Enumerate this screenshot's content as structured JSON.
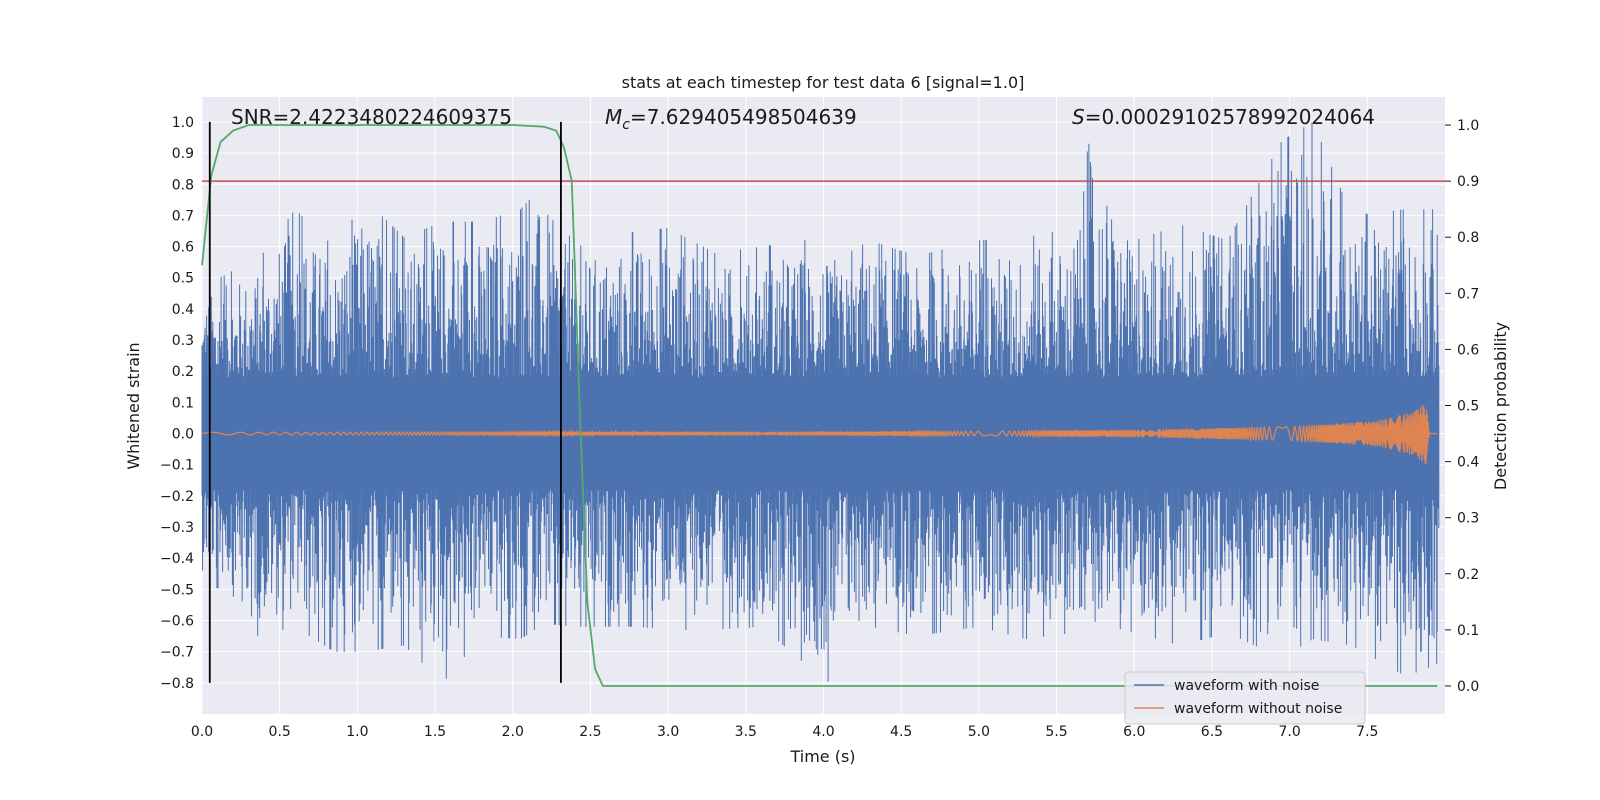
{
  "chart_data": {
    "type": "line",
    "title": "stats at each timestep for test data 6 [signal=1.0]",
    "xlabel": "Time (s)",
    "ylabel": "Whitened strain",
    "ylabel_right": "Detection probability",
    "xlim": [
      0,
      8
    ],
    "ylim": [
      -0.9,
      1.08
    ],
    "ylim_right": [
      -0.05,
      1.05
    ],
    "x_ticks": [
      0.0,
      0.5,
      1.0,
      1.5,
      2.0,
      2.5,
      3.0,
      3.5,
      4.0,
      4.5,
      5.0,
      5.5,
      6.0,
      6.5,
      7.0,
      7.5
    ],
    "x_tick_labels": [
      "0.0",
      "0.5",
      "1.0",
      "1.5",
      "2.0",
      "2.5",
      "3.0",
      "3.5",
      "4.0",
      "4.5",
      "5.0",
      "5.5",
      "6.0",
      "6.5",
      "7.0",
      "7.5"
    ],
    "y_ticks": [
      -0.8,
      -0.7,
      -0.6,
      -0.5,
      -0.4,
      -0.3,
      -0.2,
      -0.1,
      0.0,
      0.1,
      0.2,
      0.3,
      0.4,
      0.5,
      0.6,
      0.7,
      0.8,
      0.9,
      1.0
    ],
    "y_tick_labels": [
      "−0.8",
      "−0.7",
      "−0.6",
      "−0.5",
      "−0.4",
      "−0.3",
      "−0.2",
      "−0.1",
      "0.0",
      "0.1",
      "0.2",
      "0.3",
      "0.4",
      "0.5",
      "0.6",
      "0.7",
      "0.8",
      "0.9",
      "1.0"
    ],
    "y_right_ticks": [
      0.0,
      0.1,
      0.2,
      0.3,
      0.4,
      0.5,
      0.6,
      0.7,
      0.8,
      0.9,
      1.0
    ],
    "y_right_tick_labels": [
      "0.0",
      "0.1",
      "0.2",
      "0.3",
      "0.4",
      "0.5",
      "0.6",
      "0.7",
      "0.8",
      "0.9",
      "1.0"
    ],
    "grid": true,
    "annotations": {
      "snr": "SNR=2.4223480224609375",
      "mc_symbol": "M",
      "mc_sub": "c",
      "mc_value": "=7.629405498504639",
      "s_symbol": "S",
      "s_value": "=0.00029102578992024064"
    },
    "legend": {
      "placement": "bottom-right",
      "entries": [
        {
          "label": "waveform with noise",
          "color": "#4c72b0"
        },
        {
          "label": "waveform without noise",
          "color": "#dd8452"
        }
      ]
    },
    "series": [
      {
        "name": "waveform with noise",
        "axis": "left",
        "color": "#4c72b0",
        "envelope": {
          "t": [
            0.0,
            0.3,
            0.35,
            0.6,
            0.85,
            1.05,
            1.3,
            1.55,
            1.8,
            2.05,
            2.2,
            2.4,
            2.8,
            3.0,
            3.3,
            3.6,
            4.0,
            4.05,
            4.3,
            4.6,
            5.0,
            5.3,
            5.6,
            5.72,
            6.0,
            6.3,
            6.6,
            6.95,
            7.15,
            7.4,
            7.75,
            7.95
          ],
          "upper": [
            0.47,
            0.55,
            0.55,
            0.72,
            0.6,
            0.75,
            0.63,
            0.68,
            0.68,
            0.72,
            0.8,
            0.6,
            0.65,
            0.66,
            0.58,
            0.6,
            0.63,
            0.55,
            0.62,
            0.57,
            0.62,
            0.63,
            0.66,
            0.96,
            0.62,
            0.67,
            0.62,
            0.94,
            1.0,
            0.7,
            0.72,
            0.72
          ],
          "lower": [
            -0.47,
            -0.55,
            -0.65,
            -0.62,
            -0.7,
            -0.7,
            -0.68,
            -0.8,
            -0.65,
            -0.66,
            -0.61,
            -0.62,
            -0.62,
            -0.63,
            -0.63,
            -0.62,
            -0.79,
            -0.8,
            -0.62,
            -0.65,
            -0.62,
            -0.66,
            -0.64,
            -0.6,
            -0.64,
            -0.68,
            -0.64,
            -0.72,
            -0.66,
            -0.68,
            -0.78,
            -0.74
          ],
          "band": 0.18
        }
      },
      {
        "name": "waveform without noise",
        "axis": "left",
        "color": "#dd8452",
        "amplitude": {
          "t": [
            0.0,
            5.0,
            6.0,
            7.0,
            7.55,
            7.8,
            7.88,
            7.9,
            8.0
          ],
          "a": [
            0.004,
            0.007,
            0.012,
            0.022,
            0.04,
            0.07,
            0.1,
            0.0,
            0.0
          ]
        }
      },
      {
        "name": "Detection probability",
        "axis": "right",
        "color": "#55a868",
        "x": [
          0.0,
          0.06,
          0.12,
          0.2,
          0.3,
          0.4,
          0.6,
          1.0,
          1.5,
          2.0,
          2.2,
          2.28,
          2.33,
          2.38,
          2.43,
          2.48,
          2.53,
          2.58,
          2.65,
          3.0,
          4.0,
          5.0,
          6.0,
          7.0,
          7.95
        ],
        "y": [
          0.75,
          0.91,
          0.97,
          0.99,
          1.0,
          1.0,
          1.0,
          1.0,
          1.0,
          1.0,
          0.997,
          0.99,
          0.96,
          0.9,
          0.5,
          0.15,
          0.03,
          0.0,
          0.0,
          0.0,
          0.0,
          0.0,
          0.0,
          0.0,
          0.0
        ]
      }
    ],
    "threshold": {
      "axis": "right",
      "value": 0.9,
      "color": "#c44e52"
    },
    "vertical_markers": {
      "x": [
        0.05,
        2.31
      ],
      "range": [
        -0.8,
        1.0
      ],
      "color": "#000000"
    }
  }
}
